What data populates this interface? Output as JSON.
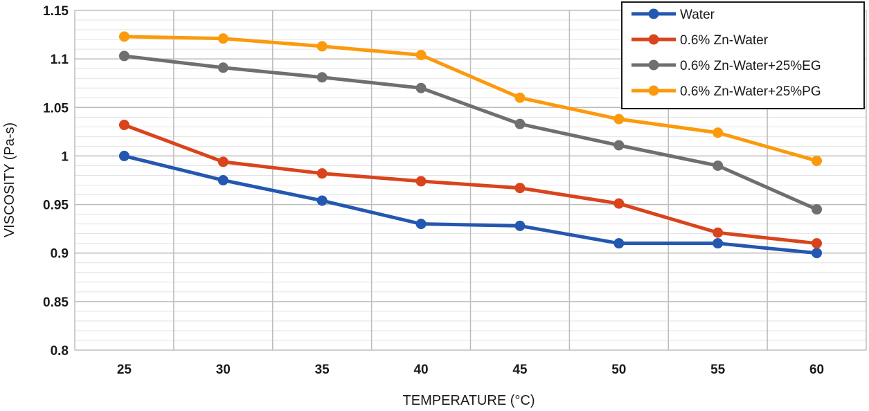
{
  "chart_data": {
    "type": "line",
    "title": "",
    "xlabel": "TEMPERATURE (°C)",
    "ylabel": "VISCOSITY (Pa-s)",
    "categories": [
      "25",
      "30",
      "35",
      "40",
      "45",
      "50",
      "55",
      "60"
    ],
    "ylim": [
      0.8,
      1.15
    ],
    "yticks": [
      {
        "value": 0.8,
        "label": "0.8"
      },
      {
        "value": 0.85,
        "label": "0.85"
      },
      {
        "value": 0.9,
        "label": "0.9"
      },
      {
        "value": 0.95,
        "label": "0.95"
      },
      {
        "value": 1.0,
        "label": "1"
      },
      {
        "value": 1.05,
        "label": "1.05"
      },
      {
        "value": 1.1,
        "label": "1.1"
      },
      {
        "value": 1.15,
        "label": "1.15"
      }
    ],
    "grid": true,
    "legend_position": "top-right",
    "series": [
      {
        "name": "Water",
        "color": "#2457b0",
        "values": [
          1.0,
          0.975,
          0.954,
          0.93,
          0.928,
          0.91,
          0.91,
          0.9
        ]
      },
      {
        "name": "0.6% Zn-Water",
        "color": "#d9441c",
        "values": [
          1.032,
          0.994,
          0.982,
          0.974,
          0.967,
          0.951,
          0.921,
          0.91
        ]
      },
      {
        "name": "0.6% Zn-Water+25%EG",
        "color": "#6f6f6f",
        "values": [
          1.103,
          1.091,
          1.081,
          1.07,
          1.033,
          1.011,
          0.99,
          0.945
        ]
      },
      {
        "name": "0.6% Zn-Water+25%PG",
        "color": "#fb9a0c",
        "values": [
          1.123,
          1.121,
          1.113,
          1.104,
          1.06,
          1.038,
          1.024,
          0.995
        ]
      }
    ]
  }
}
